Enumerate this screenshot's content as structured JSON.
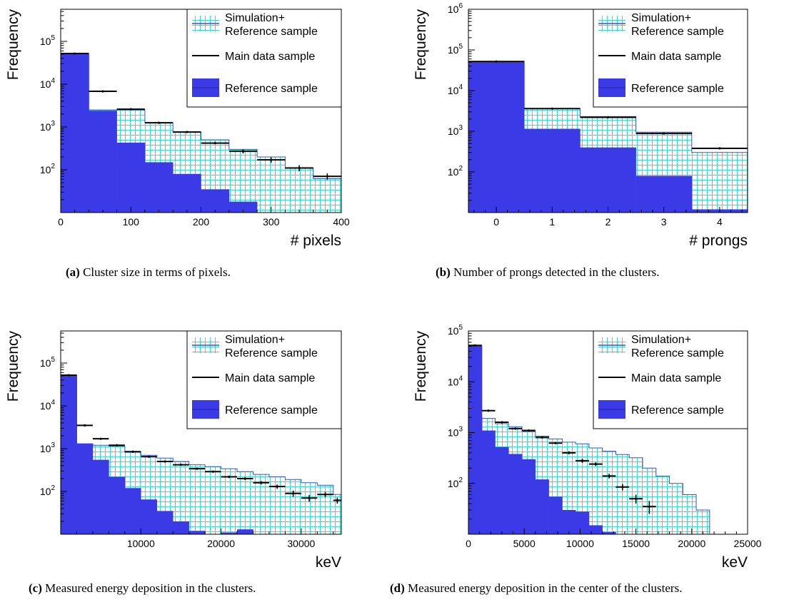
{
  "colors": {
    "reference_fill": "#3a3ae6",
    "reference_line": "#2222aa",
    "sim_grid": "#40d6cc",
    "sim_line": "#3355cc",
    "data": "#000000"
  },
  "legend": {
    "sim_line1": "Simulation+",
    "sim_line2": "Reference sample",
    "main": "Main data sample",
    "reference": "Reference sample"
  },
  "captions": [
    {
      "tag": "(a)",
      "text": " Cluster size in terms of pixels."
    },
    {
      "tag": "(b)",
      "text": " Number of prongs detected in the clusters."
    },
    {
      "tag": "(c)",
      "text": " Measured energy deposition in the clusters."
    },
    {
      "tag": "(d)",
      "text": " Measured energy deposition in the center of the clusters."
    }
  ],
  "chart_data": [
    {
      "type": "bar",
      "xlabel": "# pixels",
      "ylabel": "Frequency",
      "y_log": true,
      "xlim": [
        0,
        400
      ],
      "ylim_log10": [
        1.0,
        5.75
      ],
      "x_ticks": [
        {
          "v": 0,
          "t": "0"
        },
        {
          "v": 100,
          "t": "100"
        },
        {
          "v": 200,
          "t": "200"
        },
        {
          "v": 300,
          "t": "300"
        },
        {
          "v": 400,
          "t": "400"
        }
      ],
      "y_ticks": [
        {
          "e": 2,
          "t": "10",
          "s": "2"
        },
        {
          "e": 3,
          "t": "10",
          "s": "3"
        },
        {
          "e": 4,
          "t": "10",
          "s": "4"
        },
        {
          "e": 5,
          "t": "10",
          "s": "5"
        }
      ],
      "bin_edges": [
        0,
        40,
        80,
        120,
        160,
        200,
        240,
        280,
        320,
        360,
        400
      ],
      "reference": [
        52000,
        2400,
        430,
        150,
        80,
        35,
        18,
        10,
        5,
        3
      ],
      "simulation": [
        52000,
        2500,
        2500,
        1250,
        750,
        500,
        300,
        200,
        110,
        62
      ],
      "main_data": [
        52000,
        6800,
        2600,
        1250,
        760,
        420,
        270,
        170,
        110,
        70
      ],
      "main_data_err": [
        0,
        0,
        0,
        0,
        0,
        0,
        30,
        25,
        18,
        12
      ]
    },
    {
      "type": "bar",
      "xlabel": "# prongs",
      "ylabel": "Frequency",
      "y_log": true,
      "xlim": [
        -0.5,
        4.5
      ],
      "ylim_log10": [
        1.0,
        6.0
      ],
      "x_ticks": [
        {
          "v": 0,
          "t": "0"
        },
        {
          "v": 1,
          "t": "1"
        },
        {
          "v": 2,
          "t": "2"
        },
        {
          "v": 3,
          "t": "3"
        },
        {
          "v": 4,
          "t": "4"
        }
      ],
      "y_ticks": [
        {
          "e": 2,
          "t": "10",
          "s": "2"
        },
        {
          "e": 3,
          "t": "10",
          "s": "3"
        },
        {
          "e": 4,
          "t": "10",
          "s": "4"
        },
        {
          "e": 5,
          "t": "10",
          "s": "5"
        },
        {
          "e": 6,
          "t": "10",
          "s": "6"
        }
      ],
      "bin_edges": [
        -0.5,
        0.5,
        1.5,
        2.5,
        3.5,
        4.5
      ],
      "reference": [
        50000,
        1150,
        400,
        80,
        12
      ],
      "simulation": [
        52000,
        3600,
        2300,
        950,
        300
      ],
      "main_data": [
        52000,
        3600,
        2200,
        880,
        380
      ],
      "main_data_err": [
        0,
        0,
        0,
        0,
        0
      ]
    },
    {
      "type": "bar",
      "xlabel": "keV",
      "ylabel": "Frequency",
      "y_log": true,
      "xlim": [
        0,
        35000
      ],
      "ylim_log10": [
        1.0,
        5.75
      ],
      "x_ticks": [
        {
          "v": 10000,
          "t": "10000"
        },
        {
          "v": 20000,
          "t": "20000"
        },
        {
          "v": 30000,
          "t": "30000"
        }
      ],
      "y_ticks": [
        {
          "e": 2,
          "t": "10",
          "s": "2"
        },
        {
          "e": 3,
          "t": "10",
          "s": "3"
        },
        {
          "e": 4,
          "t": "10",
          "s": "4"
        },
        {
          "e": 5,
          "t": "10",
          "s": "5"
        }
      ],
      "bin_edges": [
        0,
        2000,
        4000,
        6000,
        8000,
        10000,
        12000,
        14000,
        16000,
        18000,
        20000,
        22000,
        24000,
        26000,
        28000,
        30000,
        32000,
        34000,
        35000
      ],
      "reference": [
        52000,
        1300,
        550,
        220,
        120,
        65,
        35,
        20,
        12,
        8,
        11,
        13,
        9,
        6,
        4,
        3,
        2,
        2
      ],
      "simulation": [
        52000,
        1300,
        1200,
        1150,
        820,
        700,
        600,
        500,
        420,
        380,
        340,
        290,
        250,
        220,
        190,
        160,
        140,
        85
      ],
      "main_data": [
        52000,
        3500,
        1700,
        1200,
        850,
        650,
        500,
        420,
        340,
        290,
        220,
        200,
        160,
        130,
        90,
        70,
        85,
        62
      ],
      "main_data_err": [
        0,
        0,
        0,
        0,
        0,
        0,
        0,
        0,
        0,
        0,
        15,
        15,
        15,
        15,
        15,
        12,
        12,
        10
      ]
    },
    {
      "type": "bar",
      "xlabel": "keV",
      "ylabel": "Frequency",
      "y_log": true,
      "xlim": [
        0,
        25000
      ],
      "ylim_log10": [
        1.0,
        5.0
      ],
      "x_ticks": [
        {
          "v": 0,
          "t": "0"
        },
        {
          "v": 5000,
          "t": "5000"
        },
        {
          "v": 10000,
          "t": "10000"
        },
        {
          "v": 15000,
          "t": "15000"
        },
        {
          "v": 20000,
          "t": "20000"
        },
        {
          "v": 25000,
          "t": "25000"
        }
      ],
      "y_ticks": [
        {
          "e": 2,
          "t": "10",
          "s": "2"
        },
        {
          "e": 3,
          "t": "10",
          "s": "3"
        },
        {
          "e": 4,
          "t": "10",
          "s": "4"
        },
        {
          "e": 5,
          "t": "10",
          "s": "5"
        }
      ],
      "bin_edges": [
        0,
        1200,
        2400,
        3600,
        4800,
        6000,
        7200,
        8400,
        9600,
        10800,
        12000,
        13200,
        14400,
        15600,
        16800,
        18000,
        19200,
        20400,
        21600,
        22800,
        24000,
        25000
      ],
      "reference": [
        52000,
        1100,
        520,
        380,
        300,
        120,
        55,
        30,
        28,
        15,
        11,
        8,
        6,
        5,
        4,
        3,
        3,
        2,
        1,
        1,
        1
      ],
      "simulation": [
        52000,
        1900,
        1500,
        1300,
        1050,
        850,
        750,
        650,
        600,
        500,
        430,
        370,
        320,
        200,
        140,
        100,
        60,
        30,
        10,
        10,
        10
      ],
      "main_data": [
        52000,
        2700,
        1600,
        1200,
        1100,
        800,
        620,
        400,
        280,
        240,
        140,
        85,
        50,
        35,
        null,
        null,
        null,
        null,
        null,
        null,
        null
      ],
      "main_data_err": [
        0,
        0,
        0,
        0,
        0,
        0,
        0,
        30,
        25,
        20,
        15,
        12,
        10,
        10,
        0,
        0,
        0,
        0,
        0,
        0,
        0
      ]
    }
  ]
}
